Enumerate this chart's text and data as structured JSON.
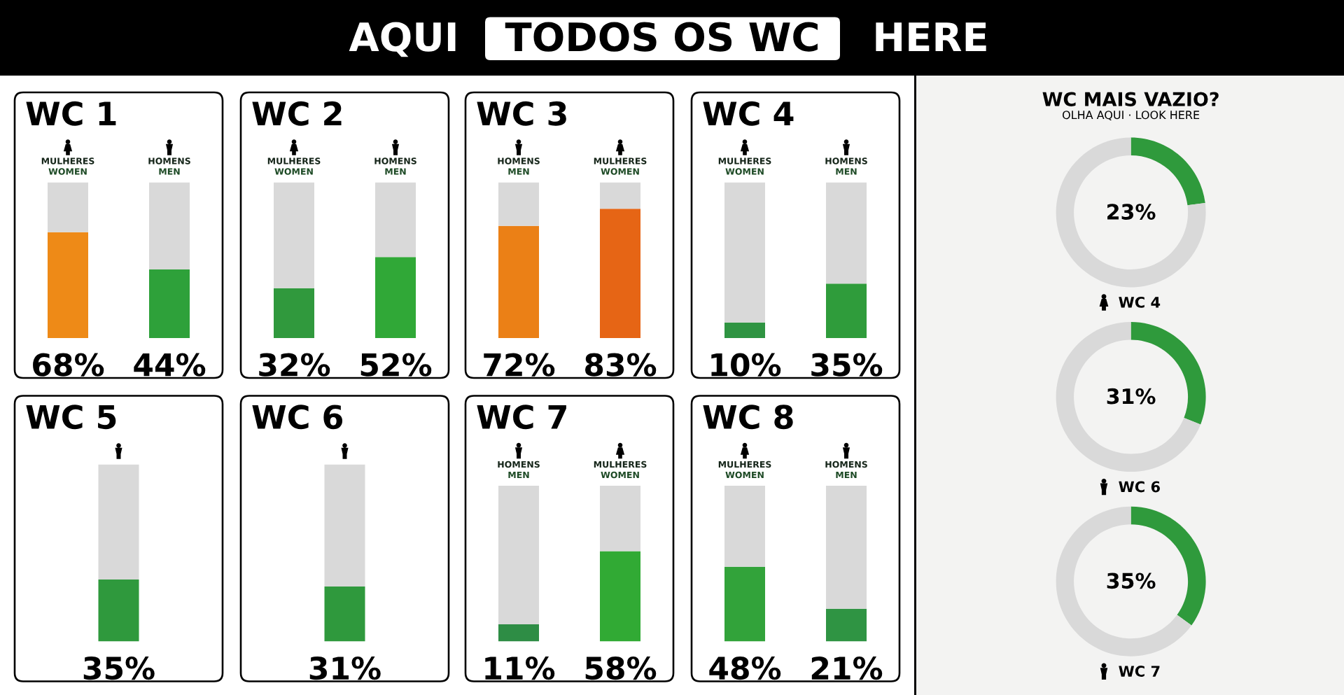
{
  "chart_data": [
    {
      "type": "other",
      "annotations": [
        "AQUI",
        "TODOS OS WC",
        "HERE"
      ]
    },
    {
      "type": "bar",
      "title": "WC 1",
      "categories": [
        "MULHERES\nWOMEN",
        "HOMENS\nMEN"
      ],
      "stacked": true,
      "tick_labels": "x",
      "series": [
        {
          "colors": [
            "#ee8a17",
            "#2ea13a"
          ],
          "values": [
            68,
            44
          ],
          "value_labels": [
            "68%",
            "44%"
          ]
        },
        {
          "color": "#d9d9d9",
          "values": [
            32,
            56
          ]
        }
      ]
    },
    {
      "type": "bar",
      "title": "WC 2",
      "categories": [
        "MULHERES\nWOMEN",
        "HOMENS\nMEN"
      ],
      "stacked": true,
      "tick_labels": "x",
      "series": [
        {
          "colors": [
            "#30993d",
            "#30a837"
          ],
          "values": [
            32,
            52
          ],
          "value_labels": [
            "32%",
            "52%"
          ]
        },
        {
          "color": "#d9d9d9",
          "values": [
            68,
            48
          ]
        }
      ]
    },
    {
      "type": "bar",
      "title": "WC 3",
      "categories": [
        "HOMENS\nMEN",
        "MULHERES\nWOMEN"
      ],
      "stacked": true,
      "tick_labels": "x",
      "series": [
        {
          "colors": [
            "#eb8016",
            "#e66515"
          ],
          "values": [
            72,
            83
          ],
          "value_labels": [
            "72%",
            "83%"
          ]
        },
        {
          "color": "#d9d9d9",
          "values": [
            28,
            17
          ]
        }
      ]
    },
    {
      "type": "bar",
      "title": "WC 4",
      "categories": [
        "MULHERES\nWOMEN",
        "HOMENS\nMEN"
      ],
      "stacked": true,
      "tick_labels": "x",
      "series": [
        {
          "colors": [
            "#2f9442",
            "#2f9c3b"
          ],
          "values": [
            10,
            35
          ],
          "value_labels": [
            "10%",
            "35%"
          ]
        },
        {
          "color": "#d9d9d9",
          "values": [
            90,
            65
          ]
        }
      ]
    },
    {
      "type": "bar",
      "title": "WC 5",
      "categories": [
        null
      ],
      "stacked": true,
      "tick_labels": false,
      "series": [
        {
          "colors": [
            "#2f993d"
          ],
          "values": [
            35
          ],
          "value_labels": [
            "35%"
          ]
        },
        {
          "color": "#d9d9d9",
          "values": [
            65
          ]
        }
      ]
    },
    {
      "type": "bar",
      "title": "WC 6",
      "categories": [
        null
      ],
      "stacked": true,
      "tick_labels": false,
      "series": [
        {
          "colors": [
            "#2f993d"
          ],
          "values": [
            31
          ],
          "value_labels": [
            "31%"
          ]
        },
        {
          "color": "#d9d9d9",
          "values": [
            69
          ]
        }
      ]
    },
    {
      "type": "bar",
      "title": "WC 7",
      "categories": [
        "HOMENS\nMEN",
        "MULHERES\nWOMEN"
      ],
      "stacked": true,
      "tick_labels": "x",
      "series": [
        {
          "colors": [
            "#2e8d45",
            "#31aa34"
          ],
          "values": [
            11,
            58
          ],
          "value_labels": [
            "11%",
            "58%"
          ]
        },
        {
          "color": "#d9d9d9",
          "values": [
            89,
            42
          ]
        }
      ]
    },
    {
      "type": "bar",
      "title": "WC 8",
      "categories": [
        "MULHERES\nWOMEN",
        "HOMENS\nMEN"
      ],
      "stacked": true,
      "tick_labels": "x",
      "series": [
        {
          "colors": [
            "#32a33a",
            "#2f9443"
          ],
          "values": [
            48,
            21
          ],
          "value_labels": [
            "48%",
            "21%"
          ]
        },
        {
          "color": "#d9d9d9",
          "values": [
            52,
            79
          ]
        }
      ]
    },
    {
      "type": "other",
      "title": "WC MAIS VAZIO?",
      "subtitle": "OLHA AQUI · LOOK HERE"
    },
    {
      "type": "donut",
      "categories": [
        null,
        null
      ],
      "values": [
        23,
        77
      ],
      "colors": [
        "#2f9a3c",
        "#d9d9d9"
      ],
      "value_labels": [
        "23%",
        null
      ],
      "xlabel": "WC 4"
    },
    {
      "type": "donut",
      "categories": [
        null,
        null
      ],
      "values": [
        31,
        69
      ],
      "colors": [
        "#2f9a3c",
        "#d9d9d9"
      ],
      "value_labels": [
        "31%",
        null
      ],
      "xlabel": "WC 6"
    },
    {
      "type": "donut",
      "categories": [
        null,
        null
      ],
      "values": [
        35,
        65
      ],
      "colors": [
        "#2f9a3c",
        "#d9d9d9"
      ],
      "value_labels": [
        "35%",
        null
      ],
      "xlabel": "WC 7"
    }
  ]
}
